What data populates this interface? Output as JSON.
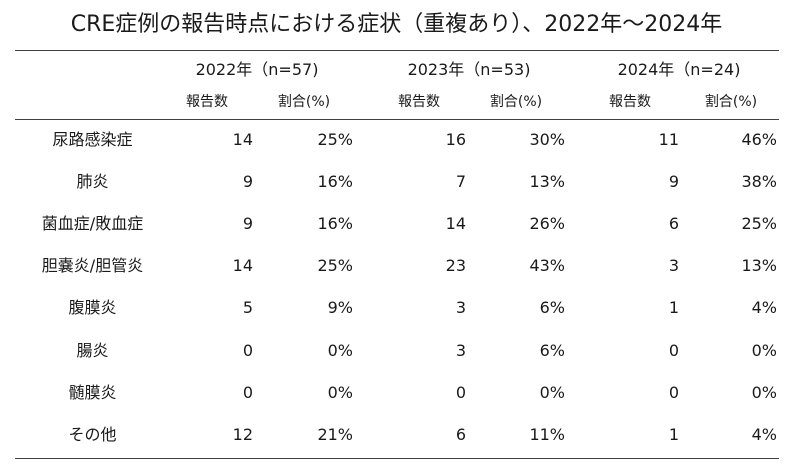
{
  "title": "CRE症例の報告時点における症状（重複あり）、2022年〜2024年",
  "groups": [
    {
      "label": "2022年（n=57)",
      "count_label": "報告数",
      "ratio_label": "割合(%)"
    },
    {
      "label": "2023年（n=53)",
      "count_label": "報告数",
      "ratio_label": "割合(%)"
    },
    {
      "label": "2024年（n=24)",
      "count_label": "報告数",
      "ratio_label": "割合(%)"
    }
  ],
  "rows": [
    {
      "label": "尿路感染症",
      "values": [
        "14",
        "25%",
        "16",
        "30%",
        "11",
        "46%"
      ]
    },
    {
      "label": "肺炎",
      "values": [
        "9",
        "16%",
        "7",
        "13%",
        "9",
        "38%"
      ]
    },
    {
      "label": "菌血症/敗血症",
      "values": [
        "9",
        "16%",
        "14",
        "26%",
        "6",
        "25%"
      ]
    },
    {
      "label": "胆嚢炎/胆管炎",
      "values": [
        "14",
        "25%",
        "23",
        "43%",
        "3",
        "13%"
      ]
    },
    {
      "label": "腹膜炎",
      "values": [
        "5",
        "9%",
        "3",
        "6%",
        "1",
        "4%"
      ]
    },
    {
      "label": "腸炎",
      "values": [
        "0",
        "0%",
        "3",
        "6%",
        "0",
        "0%"
      ]
    },
    {
      "label": "髄膜炎",
      "values": [
        "0",
        "0%",
        "0",
        "0%",
        "0",
        "0%"
      ]
    },
    {
      "label": "その他",
      "values": [
        "12",
        "21%",
        "6",
        "11%",
        "1",
        "4%"
      ]
    }
  ]
}
